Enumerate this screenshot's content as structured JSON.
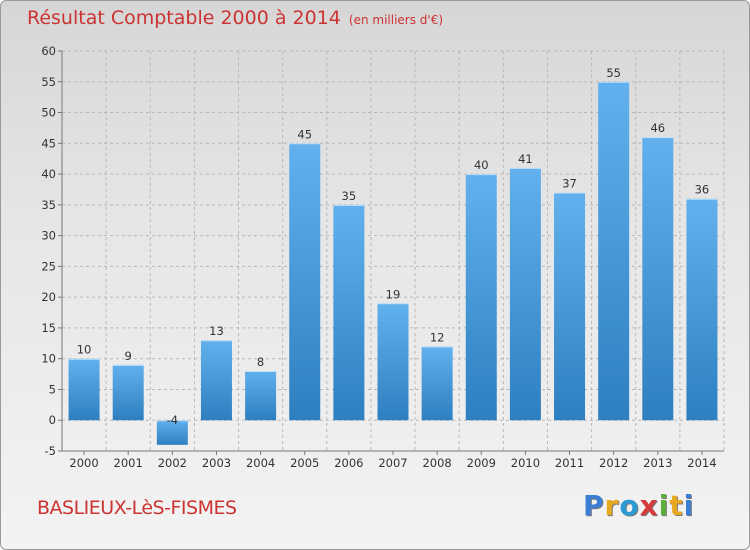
{
  "header": {
    "title": "Résultat Comptable 2000 à 2014",
    "subtitle": "(en milliers d'€)"
  },
  "footer": {
    "city": "BASLIEUX-LèS-FISMES",
    "logo_letters": [
      "P",
      "r",
      "o",
      "x",
      "i",
      "t",
      "i"
    ],
    "logo_colors": [
      "#3a7fd5",
      "#e8a820",
      "#2b9bd6",
      "#d63b3b",
      "#5cae3a",
      "#e8a820",
      "#3a7fd5"
    ]
  },
  "colors": {
    "bar_light": "#62b1ee",
    "bar_dark": "#2e7fc0",
    "title": "#cc3333",
    "grid": "#b8b8b8"
  },
  "chart_data": {
    "type": "bar",
    "title": "Résultat Comptable 2000 à 2014",
    "subtitle": "(en milliers d'€)",
    "categories": [
      "2000",
      "2001",
      "2002",
      "2003",
      "2004",
      "2005",
      "2006",
      "2007",
      "2008",
      "2009",
      "2010",
      "2011",
      "2012",
      "2013",
      "2014"
    ],
    "values": [
      10,
      9,
      -4,
      13,
      8,
      45,
      35,
      19,
      12,
      40,
      41,
      37,
      55,
      46,
      36
    ],
    "ylim": [
      -5,
      60
    ],
    "yticks": [
      -5,
      0,
      5,
      10,
      15,
      20,
      25,
      30,
      35,
      40,
      45,
      50,
      55,
      60
    ],
    "grid": true,
    "xlabel": "",
    "ylabel": ""
  }
}
